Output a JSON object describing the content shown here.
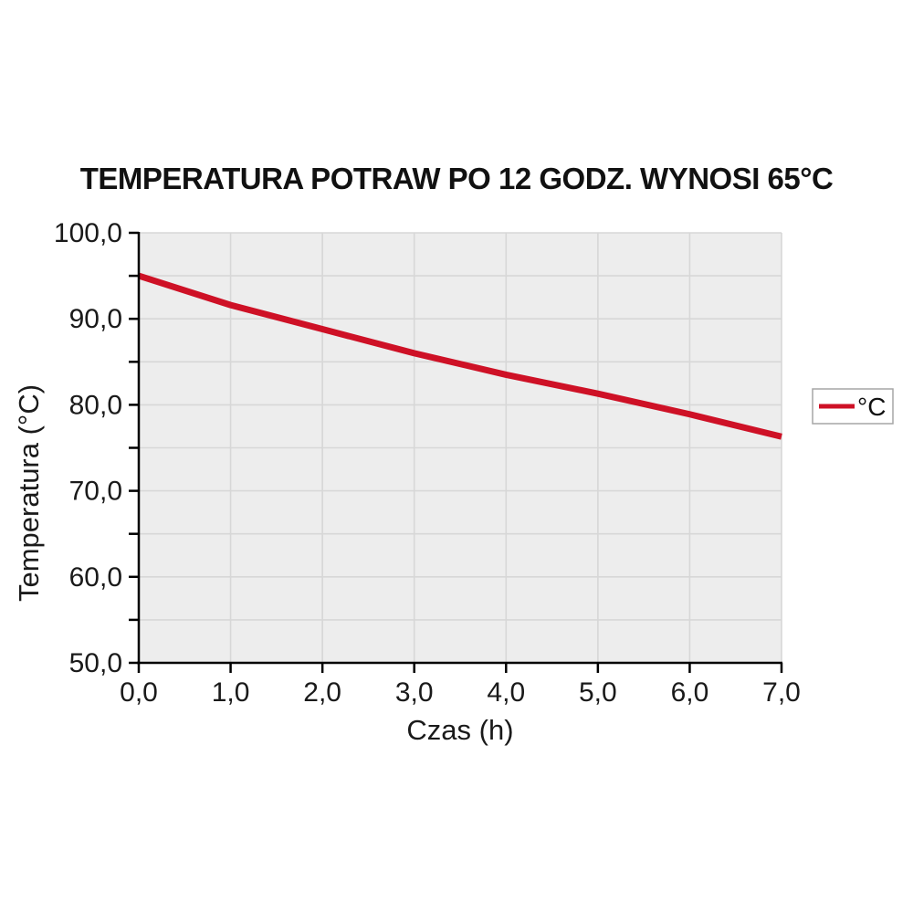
{
  "chart_data": {
    "type": "line",
    "title": "TEMPERATURA POTRAW PO 12 GODZ. WYNOSI 65°C",
    "xlabel": "Czas (h)",
    "ylabel": "Temperatura (°C)",
    "x": [
      0.0,
      1.0,
      2.0,
      3.0,
      4.0,
      5.0,
      6.0,
      7.0
    ],
    "series": [
      {
        "name": "°C",
        "color": "#ce1126",
        "values": [
          95.0,
          91.6,
          88.8,
          86.0,
          83.5,
          81.3,
          78.9,
          76.3
        ]
      }
    ],
    "xlim": [
      0.0,
      7.0
    ],
    "ylim": [
      50.0,
      100.0
    ],
    "x_ticks": [
      "0,0",
      "1,0",
      "2,0",
      "3,0",
      "4,0",
      "5,0",
      "6,0",
      "7,0"
    ],
    "y_tick_labels": [
      "100,0",
      "90,0",
      "80,0",
      "70,0",
      "60,0",
      "50,0"
    ],
    "y_tick_step_minor": 5,
    "grid": true,
    "legend_position": "right",
    "colors": {
      "plot_background": "#ededed",
      "grid": "#d7d7d7",
      "axis": "#000000",
      "legend_border": "#a6a6a6",
      "legend_background": "#ffffff"
    }
  }
}
